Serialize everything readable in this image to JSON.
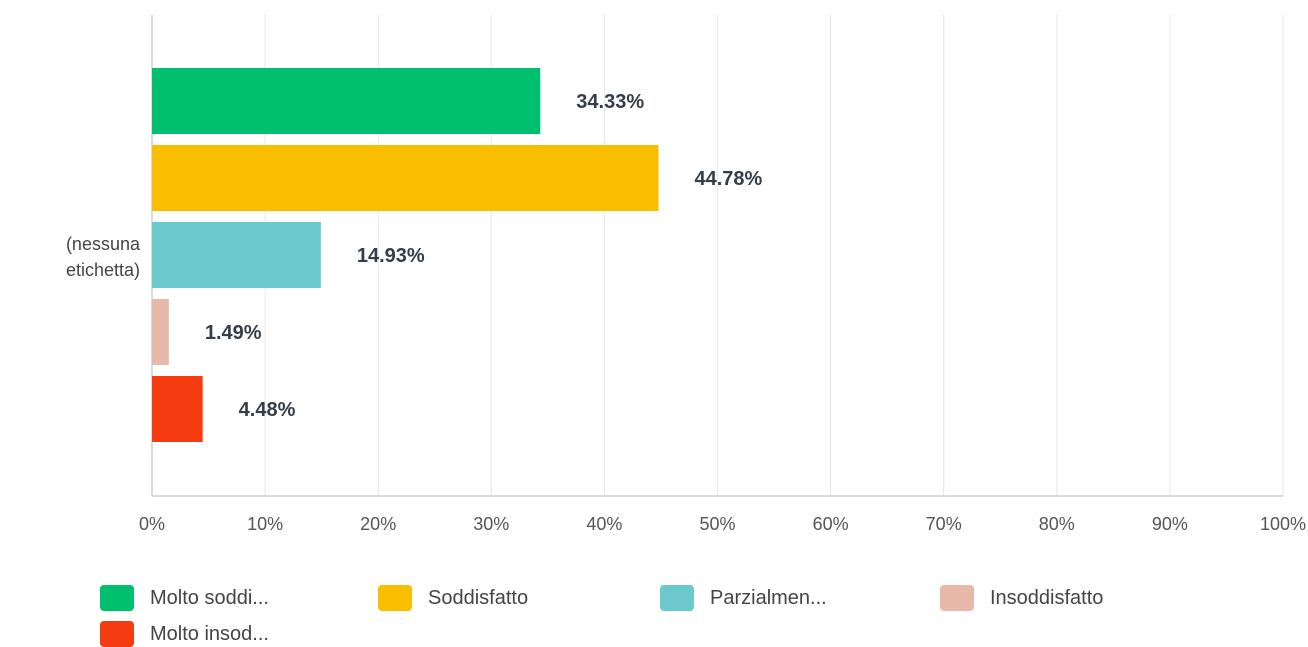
{
  "chart_data": {
    "type": "bar",
    "orientation": "horizontal",
    "categories": [
      "(nessuna etichetta)"
    ],
    "category_label_lines": [
      "(nessuna",
      "etichetta)"
    ],
    "series": [
      {
        "name": "Molto soddi...",
        "values": [
          34.33
        ],
        "label": "34.33%",
        "color": "#00bf6f"
      },
      {
        "name": "Soddisfatto",
        "values": [
          44.78
        ],
        "label": "44.78%",
        "color": "#f9be00"
      },
      {
        "name": "Parzialmen...",
        "values": [
          14.93
        ],
        "label": "14.93%",
        "color": "#6bc8cd"
      },
      {
        "name": "Insoddisfatto",
        "values": [
          1.49
        ],
        "label": "1.49%",
        "color": "#e8b9ab"
      },
      {
        "name": "Molto insod...",
        "values": [
          4.48
        ],
        "label": "4.48%",
        "color": "#f53b10"
      }
    ],
    "xlim": [
      0,
      100
    ],
    "x_ticks": [
      "0%",
      "10%",
      "20%",
      "30%",
      "40%",
      "50%",
      "60%",
      "70%",
      "80%",
      "90%",
      "100%"
    ],
    "grid": true,
    "legend_position": "bottom"
  }
}
